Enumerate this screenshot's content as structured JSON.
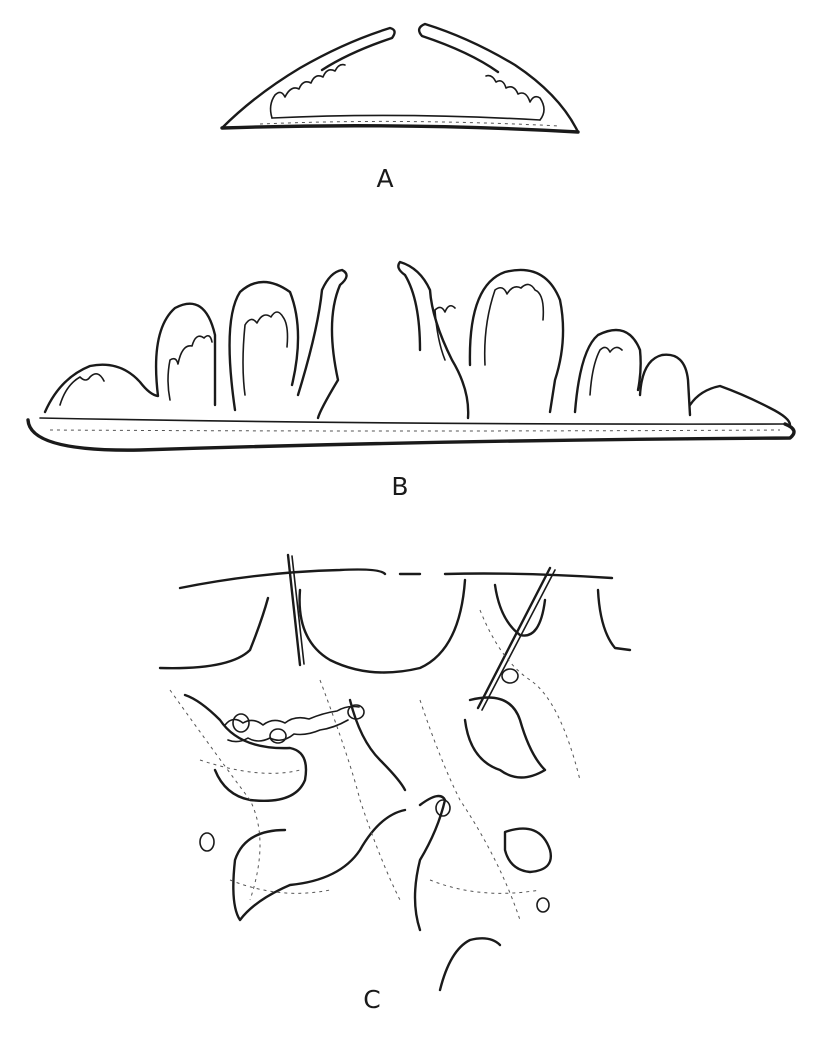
{
  "figures": [
    {
      "id": "A",
      "label": "A"
    },
    {
      "id": "B",
      "label": "B"
    },
    {
      "id": "C",
      "label": "C"
    }
  ],
  "colors": {
    "ink": "#1a1a1a",
    "paper": "#ffffff"
  }
}
